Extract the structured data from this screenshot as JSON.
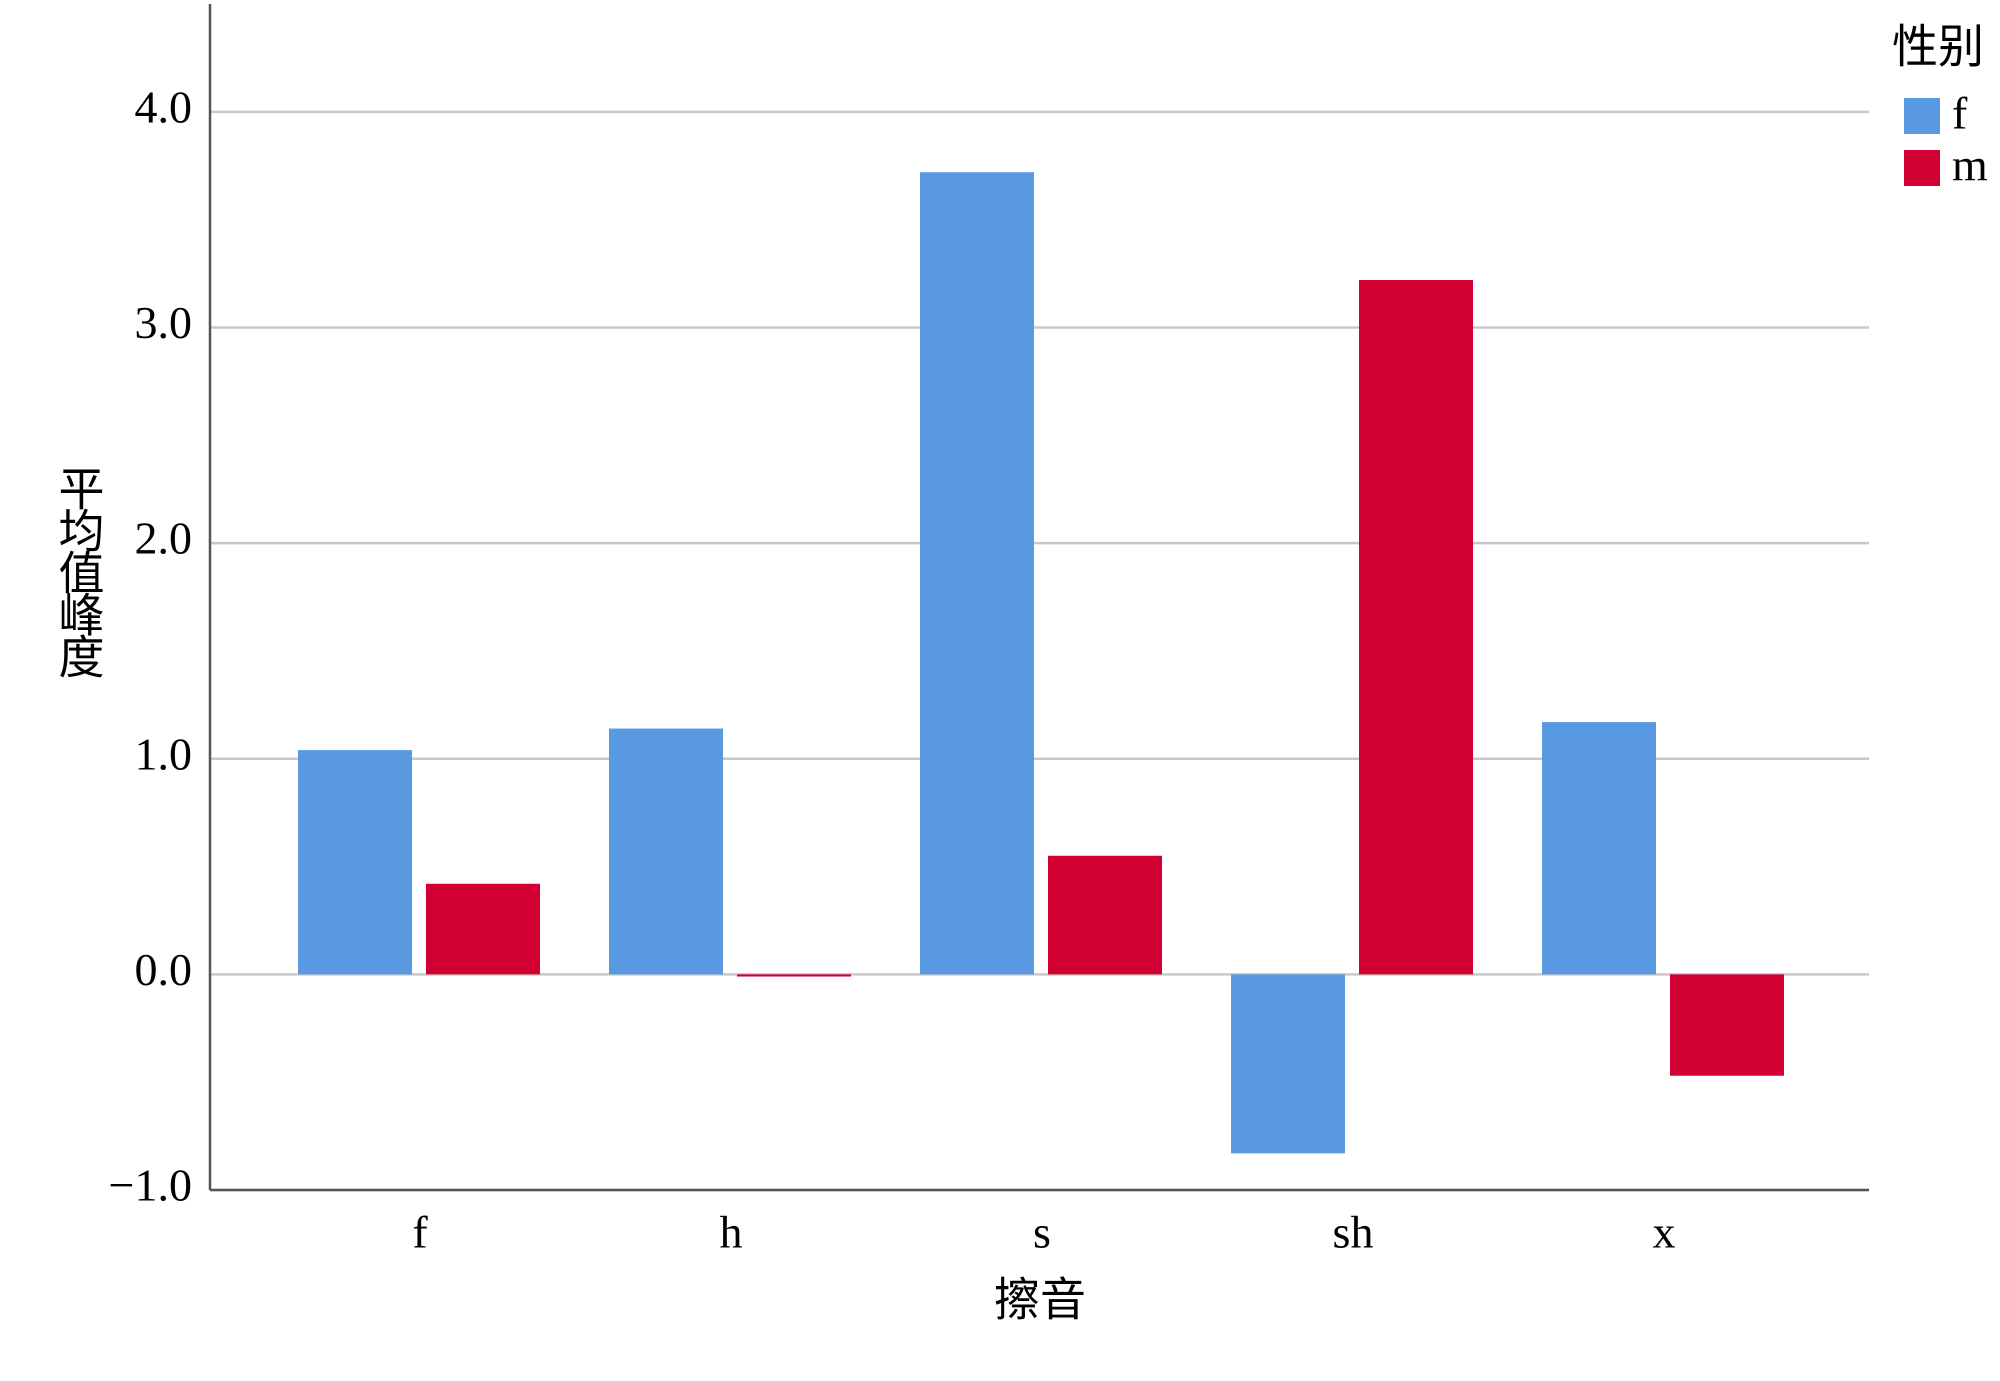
{
  "chart_data": {
    "type": "bar",
    "x_label": "擦音",
    "y_label": "平均值峰度",
    "legend_title": "性别",
    "legend_position": "top-right",
    "categories": [
      "f",
      "h",
      "s",
      "sh",
      "x"
    ],
    "series": [
      {
        "name": "f",
        "color": "#5899e2",
        "values": [
          1.04,
          1.14,
          3.72,
          -0.83,
          1.17
        ]
      },
      {
        "name": "m",
        "color": "#d20032",
        "values": [
          0.42,
          -0.01,
          0.55,
          3.22,
          -0.47
        ]
      }
    ],
    "ylim": [
      -1,
      4.5
    ],
    "yticks": [
      {
        "value": -1,
        "label": "−1.0"
      },
      {
        "value": 0,
        "label": "0.0"
      },
      {
        "value": 1,
        "label": "1.0"
      },
      {
        "value": 2,
        "label": "2.0"
      },
      {
        "value": 3,
        "label": "3.0"
      },
      {
        "value": 4,
        "label": "4.0"
      }
    ],
    "grid": true
  }
}
